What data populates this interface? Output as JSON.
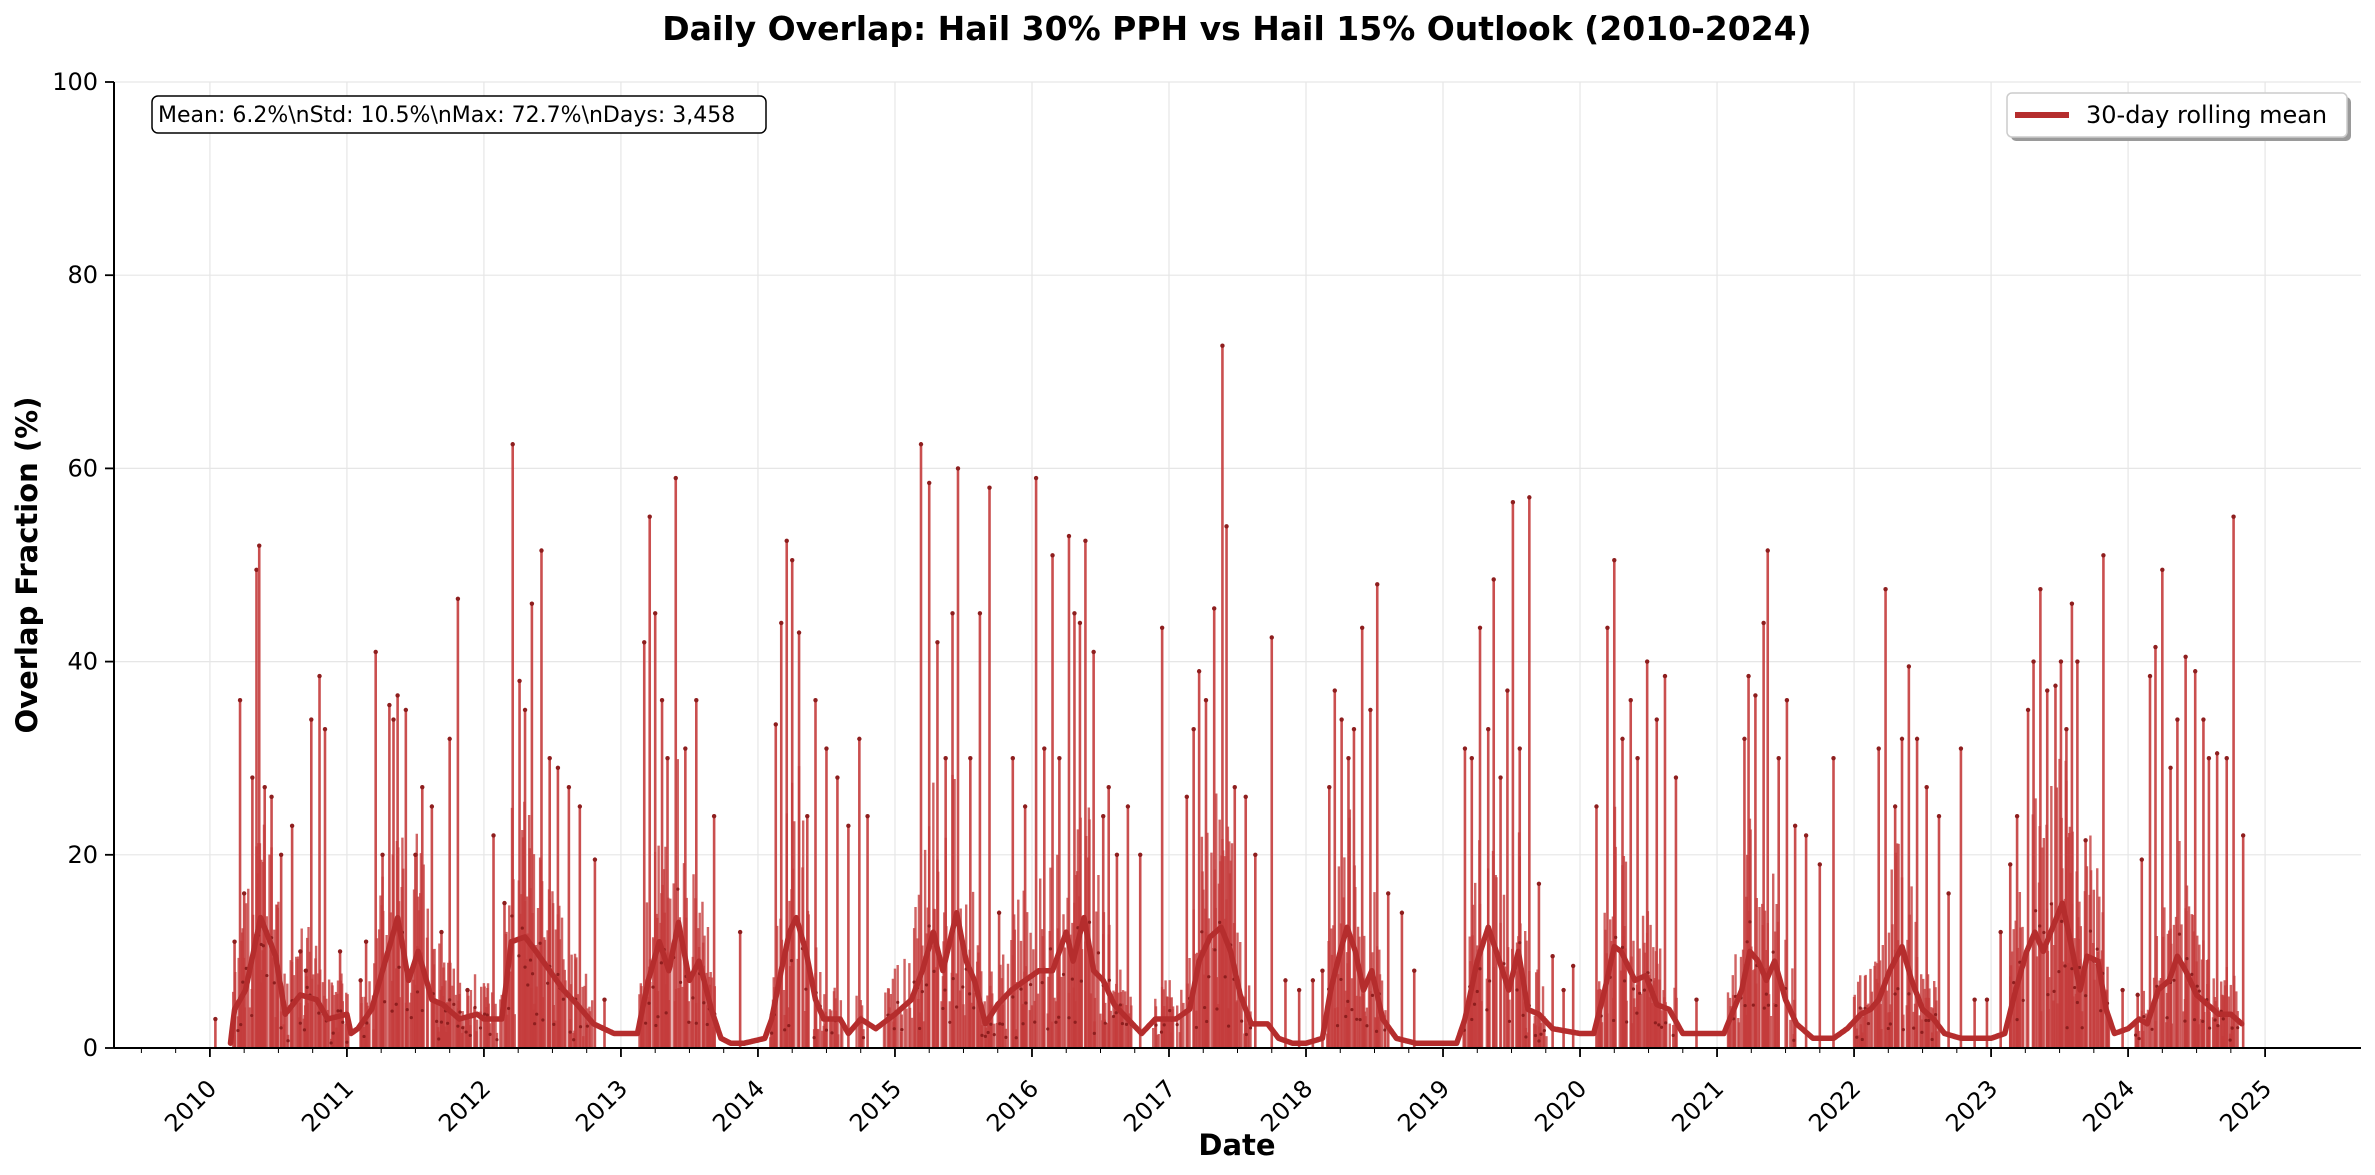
{
  "chart_data": {
    "type": "line",
    "title": "Daily Overlap: Hail 30% PPH vs Hail 15% Outlook (2010-2024)",
    "xlabel": "Date",
    "ylabel": "Overlap Fraction (%)",
    "xlim": [
      2009.3,
      2025.7
    ],
    "ylim": [
      0,
      100
    ],
    "x_ticks": [
      "2010",
      "2011",
      "2012",
      "2013",
      "2014",
      "2015",
      "2016",
      "2017",
      "2018",
      "2019",
      "2020",
      "2021",
      "2022",
      "2023",
      "2024",
      "2025"
    ],
    "y_ticks": [
      0,
      20,
      40,
      60,
      80,
      100
    ],
    "grid": true,
    "stats_box": "Mean: 6.2%\\nStd: 10.5%\\nMax: 72.7%\\nDays: 3,458",
    "legend": {
      "position": "top-right",
      "entries": [
        "30-day rolling mean"
      ]
    },
    "colors": {
      "daily": "#c43c3c",
      "rolling": "#b52d2d",
      "grid": "#e6e6e6"
    },
    "peaks": [
      [
        2010.04,
        3
      ],
      [
        2010.18,
        11
      ],
      [
        2010.22,
        36
      ],
      [
        2010.25,
        16
      ],
      [
        2010.31,
        28
      ],
      [
        2010.34,
        49.5
      ],
      [
        2010.36,
        52
      ],
      [
        2010.4,
        27
      ],
      [
        2010.45,
        26
      ],
      [
        2010.52,
        20
      ],
      [
        2010.6,
        23
      ],
      [
        2010.66,
        10
      ],
      [
        2010.7,
        8
      ],
      [
        2010.74,
        34
      ],
      [
        2010.8,
        38.5
      ],
      [
        2010.84,
        33
      ],
      [
        2010.95,
        10
      ],
      [
        2011.1,
        7
      ],
      [
        2011.14,
        11
      ],
      [
        2011.21,
        41
      ],
      [
        2011.26,
        20
      ],
      [
        2011.31,
        35.5
      ],
      [
        2011.34,
        34
      ],
      [
        2011.37,
        36.5
      ],
      [
        2011.43,
        35
      ],
      [
        2011.5,
        20
      ],
      [
        2011.55,
        27
      ],
      [
        2011.62,
        25
      ],
      [
        2011.69,
        12
      ],
      [
        2011.75,
        32
      ],
      [
        2011.81,
        46.5
      ],
      [
        2011.88,
        6
      ],
      [
        2012.07,
        22
      ],
      [
        2012.15,
        15
      ],
      [
        2012.21,
        62.5
      ],
      [
        2012.26,
        38
      ],
      [
        2012.3,
        35
      ],
      [
        2012.35,
        46
      ],
      [
        2012.42,
        51.5
      ],
      [
        2012.48,
        30
      ],
      [
        2012.54,
        29
      ],
      [
        2012.62,
        27
      ],
      [
        2012.7,
        25
      ],
      [
        2012.81,
        19.5
      ],
      [
        2012.88,
        5
      ],
      [
        2013.17,
        42
      ],
      [
        2013.21,
        55
      ],
      [
        2013.25,
        45
      ],
      [
        2013.3,
        36
      ],
      [
        2013.34,
        30
      ],
      [
        2013.4,
        59
      ],
      [
        2013.47,
        31
      ],
      [
        2013.55,
        36
      ],
      [
        2013.68,
        24
      ],
      [
        2013.87,
        12
      ],
      [
        2014.13,
        33.5
      ],
      [
        2014.17,
        44
      ],
      [
        2014.21,
        52.5
      ],
      [
        2014.25,
        50.5
      ],
      [
        2014.3,
        43
      ],
      [
        2014.36,
        24
      ],
      [
        2014.42,
        36
      ],
      [
        2014.5,
        31
      ],
      [
        2014.58,
        28
      ],
      [
        2014.66,
        23
      ],
      [
        2014.74,
        32
      ],
      [
        2014.8,
        24
      ],
      [
        2015.19,
        62.5
      ],
      [
        2015.25,
        58.5
      ],
      [
        2015.31,
        42
      ],
      [
        2015.37,
        30
      ],
      [
        2015.42,
        45
      ],
      [
        2015.46,
        60
      ],
      [
        2015.55,
        30
      ],
      [
        2015.62,
        45
      ],
      [
        2015.69,
        58
      ],
      [
        2015.76,
        14
      ],
      [
        2015.86,
        30
      ],
      [
        2015.95,
        25
      ],
      [
        2016.03,
        59
      ],
      [
        2016.09,
        31
      ],
      [
        2016.15,
        51
      ],
      [
        2016.2,
        30
      ],
      [
        2016.27,
        53
      ],
      [
        2016.31,
        45
      ],
      [
        2016.35,
        44
      ],
      [
        2016.39,
        52.5
      ],
      [
        2016.45,
        41
      ],
      [
        2016.52,
        24
      ],
      [
        2016.56,
        27
      ],
      [
        2016.62,
        20
      ],
      [
        2016.7,
        25
      ],
      [
        2016.79,
        20
      ],
      [
        2016.95,
        43.5
      ],
      [
        2017.13,
        26
      ],
      [
        2017.18,
        33
      ],
      [
        2017.22,
        39
      ],
      [
        2017.27,
        36
      ],
      [
        2017.33,
        45.5
      ],
      [
        2017.39,
        72.7
      ],
      [
        2017.42,
        54
      ],
      [
        2017.48,
        27
      ],
      [
        2017.56,
        26
      ],
      [
        2017.63,
        20
      ],
      [
        2017.75,
        42.5
      ],
      [
        2017.85,
        7
      ],
      [
        2017.95,
        6
      ],
      [
        2018.05,
        7
      ],
      [
        2018.12,
        8
      ],
      [
        2018.17,
        27
      ],
      [
        2018.21,
        37
      ],
      [
        2018.26,
        34
      ],
      [
        2018.31,
        30
      ],
      [
        2018.35,
        33
      ],
      [
        2018.41,
        43.5
      ],
      [
        2018.47,
        35
      ],
      [
        2018.52,
        48
      ],
      [
        2018.6,
        16
      ],
      [
        2018.7,
        14
      ],
      [
        2018.79,
        8
      ],
      [
        2019.16,
        31
      ],
      [
        2019.21,
        30
      ],
      [
        2019.27,
        43.5
      ],
      [
        2019.33,
        33
      ],
      [
        2019.37,
        48.5
      ],
      [
        2019.42,
        28
      ],
      [
        2019.47,
        37
      ],
      [
        2019.51,
        56.5
      ],
      [
        2019.56,
        31
      ],
      [
        2019.63,
        57
      ],
      [
        2019.7,
        17
      ],
      [
        2019.8,
        9.5
      ],
      [
        2019.88,
        6
      ],
      [
        2019.95,
        8.5
      ],
      [
        2020.12,
        25
      ],
      [
        2020.2,
        43.5
      ],
      [
        2020.25,
        50.5
      ],
      [
        2020.31,
        32
      ],
      [
        2020.37,
        36
      ],
      [
        2020.42,
        30
      ],
      [
        2020.49,
        40
      ],
      [
        2020.56,
        34
      ],
      [
        2020.62,
        38.5
      ],
      [
        2020.7,
        28
      ],
      [
        2020.85,
        5
      ],
      [
        2021.2,
        32
      ],
      [
        2021.23,
        38.5
      ],
      [
        2021.28,
        36.5
      ],
      [
        2021.34,
        44
      ],
      [
        2021.37,
        51.5
      ],
      [
        2021.45,
        30
      ],
      [
        2021.51,
        36
      ],
      [
        2021.57,
        23
      ],
      [
        2021.65,
        22
      ],
      [
        2021.75,
        19
      ],
      [
        2021.85,
        30
      ],
      [
        2022.18,
        31
      ],
      [
        2022.23,
        47.5
      ],
      [
        2022.3,
        25
      ],
      [
        2022.35,
        32
      ],
      [
        2022.4,
        39.5
      ],
      [
        2022.46,
        32
      ],
      [
        2022.53,
        27
      ],
      [
        2022.62,
        24
      ],
      [
        2022.69,
        16
      ],
      [
        2022.78,
        31
      ],
      [
        2022.88,
        5
      ],
      [
        2022.97,
        5
      ],
      [
        2023.07,
        12
      ],
      [
        2023.14,
        19
      ],
      [
        2023.19,
        24
      ],
      [
        2023.27,
        35
      ],
      [
        2023.31,
        40
      ],
      [
        2023.36,
        47.5
      ],
      [
        2023.41,
        37
      ],
      [
        2023.47,
        37.5
      ],
      [
        2023.51,
        40
      ],
      [
        2023.55,
        33
      ],
      [
        2023.59,
        46
      ],
      [
        2023.63,
        40
      ],
      [
        2023.69,
        21.5
      ],
      [
        2023.82,
        51
      ],
      [
        2023.96,
        6
      ],
      [
        2024.07,
        5.5
      ],
      [
        2024.1,
        19.5
      ],
      [
        2024.16,
        38.5
      ],
      [
        2024.2,
        41.5
      ],
      [
        2024.25,
        49.5
      ],
      [
        2024.31,
        29
      ],
      [
        2024.36,
        34
      ],
      [
        2024.42,
        40.5
      ],
      [
        2024.49,
        39
      ],
      [
        2024.55,
        34
      ],
      [
        2024.59,
        30
      ],
      [
        2024.65,
        30.5
      ],
      [
        2024.72,
        30
      ],
      [
        2024.77,
        55
      ],
      [
        2024.84,
        22
      ]
    ],
    "rolling_anchors": [
      [
        2010.15,
        0.5
      ],
      [
        2010.18,
        4
      ],
      [
        2010.26,
        6
      ],
      [
        2010.37,
        13.5
      ],
      [
        2010.48,
        9.5
      ],
      [
        2010.55,
        3.5
      ],
      [
        2010.66,
        5.5
      ],
      [
        2010.78,
        5
      ],
      [
        2010.86,
        3
      ],
      [
        2011.0,
        3.5
      ],
      [
        2011.03,
        1.5
      ],
      [
        2011.08,
        2
      ],
      [
        2011.18,
        4
      ],
      [
        2011.3,
        10
      ],
      [
        2011.37,
        13.5
      ],
      [
        2011.45,
        7
      ],
      [
        2011.52,
        10
      ],
      [
        2011.62,
        5
      ],
      [
        2011.7,
        4.5
      ],
      [
        2011.82,
        3
      ],
      [
        2011.95,
        3.5
      ],
      [
        2012.0,
        3
      ],
      [
        2012.13,
        3
      ],
      [
        2012.2,
        11
      ],
      [
        2012.3,
        11.5
      ],
      [
        2012.38,
        10
      ],
      [
        2012.48,
        8
      ],
      [
        2012.58,
        6
      ],
      [
        2012.68,
        4.5
      ],
      [
        2012.8,
        2.5
      ],
      [
        2012.95,
        1.5
      ],
      [
        2013.05,
        1.5
      ],
      [
        2013.12,
        1.5
      ],
      [
        2013.2,
        7
      ],
      [
        2013.28,
        11
      ],
      [
        2013.35,
        8
      ],
      [
        2013.42,
        13
      ],
      [
        2013.5,
        7
      ],
      [
        2013.57,
        9
      ],
      [
        2013.66,
        4
      ],
      [
        2013.73,
        1
      ],
      [
        2013.8,
        0.5
      ],
      [
        2013.9,
        0.5
      ],
      [
        2014.05,
        1
      ],
      [
        2014.1,
        3
      ],
      [
        2014.17,
        8
      ],
      [
        2014.23,
        12
      ],
      [
        2014.28,
        13.5
      ],
      [
        2014.35,
        10
      ],
      [
        2014.42,
        5
      ],
      [
        2014.48,
        3
      ],
      [
        2014.6,
        3
      ],
      [
        2014.66,
        1.5
      ],
      [
        2014.75,
        3
      ],
      [
        2014.86,
        2
      ],
      [
        2015.0,
        3.5
      ],
      [
        2015.12,
        5
      ],
      [
        2015.2,
        8
      ],
      [
        2015.28,
        12
      ],
      [
        2015.35,
        8
      ],
      [
        2015.45,
        14
      ],
      [
        2015.52,
        9
      ],
      [
        2015.58,
        7
      ],
      [
        2015.66,
        2.5
      ],
      [
        2015.75,
        4.5
      ],
      [
        2015.85,
        6
      ],
      [
        2015.95,
        7
      ],
      [
        2016.05,
        8
      ],
      [
        2016.15,
        8
      ],
      [
        2016.25,
        12
      ],
      [
        2016.3,
        9
      ],
      [
        2016.38,
        13.5
      ],
      [
        2016.45,
        8
      ],
      [
        2016.52,
        7
      ],
      [
        2016.6,
        4.5
      ],
      [
        2016.7,
        3
      ],
      [
        2016.8,
        1.5
      ],
      [
        2016.9,
        3
      ],
      [
        2017.05,
        3
      ],
      [
        2017.15,
        4
      ],
      [
        2017.22,
        9
      ],
      [
        2017.3,
        11.5
      ],
      [
        2017.38,
        12.5
      ],
      [
        2017.45,
        10
      ],
      [
        2017.52,
        5.5
      ],
      [
        2017.6,
        2.5
      ],
      [
        2017.72,
        2.5
      ],
      [
        2017.8,
        1
      ],
      [
        2017.9,
        0.5
      ],
      [
        2018.0,
        0.5
      ],
      [
        2018.12,
        1
      ],
      [
        2018.18,
        6
      ],
      [
        2018.25,
        10
      ],
      [
        2018.3,
        12.5
      ],
      [
        2018.36,
        10
      ],
      [
        2018.42,
        6
      ],
      [
        2018.48,
        8
      ],
      [
        2018.56,
        3
      ],
      [
        2018.66,
        1
      ],
      [
        2018.8,
        0.5
      ],
      [
        2019.0,
        0.5
      ],
      [
        2019.1,
        0.5
      ],
      [
        2019.16,
        3
      ],
      [
        2019.25,
        9
      ],
      [
        2019.33,
        12.5
      ],
      [
        2019.4,
        9.5
      ],
      [
        2019.48,
        6
      ],
      [
        2019.55,
        10
      ],
      [
        2019.62,
        4
      ],
      [
        2019.7,
        3.5
      ],
      [
        2019.8,
        2
      ],
      [
        2020.0,
        1.5
      ],
      [
        2020.1,
        1.5
      ],
      [
        2020.18,
        6
      ],
      [
        2020.25,
        10.5
      ],
      [
        2020.3,
        10
      ],
      [
        2020.4,
        7
      ],
      [
        2020.48,
        7.5
      ],
      [
        2020.56,
        4.5
      ],
      [
        2020.65,
        4
      ],
      [
        2020.75,
        1.5
      ],
      [
        2020.9,
        1.5
      ],
      [
        2021.05,
        1.5
      ],
      [
        2021.18,
        6
      ],
      [
        2021.24,
        10
      ],
      [
        2021.3,
        9
      ],
      [
        2021.36,
        7
      ],
      [
        2021.42,
        9
      ],
      [
        2021.5,
        5
      ],
      [
        2021.58,
        2.5
      ],
      [
        2021.7,
        1
      ],
      [
        2021.85,
        1
      ],
      [
        2021.95,
        2
      ],
      [
        2022.05,
        3.5
      ],
      [
        2022.12,
        4
      ],
      [
        2022.18,
        5
      ],
      [
        2022.26,
        8
      ],
      [
        2022.35,
        10.5
      ],
      [
        2022.42,
        7
      ],
      [
        2022.5,
        4
      ],
      [
        2022.58,
        3
      ],
      [
        2022.66,
        1.5
      ],
      [
        2022.78,
        1
      ],
      [
        2022.88,
        1
      ],
      [
        2023.0,
        1
      ],
      [
        2023.1,
        1.5
      ],
      [
        2023.18,
        6
      ],
      [
        2023.26,
        10
      ],
      [
        2023.32,
        12
      ],
      [
        2023.38,
        10
      ],
      [
        2023.45,
        12.5
      ],
      [
        2023.52,
        15
      ],
      [
        2023.58,
        11
      ],
      [
        2023.65,
        6
      ],
      [
        2023.7,
        9.5
      ],
      [
        2023.78,
        9
      ],
      [
        2023.84,
        4
      ],
      [
        2023.9,
        1.5
      ],
      [
        2024.0,
        2
      ],
      [
        2024.08,
        3
      ],
      [
        2024.14,
        2.5
      ],
      [
        2024.22,
        6
      ],
      [
        2024.3,
        7
      ],
      [
        2024.36,
        9.5
      ],
      [
        2024.42,
        8
      ],
      [
        2024.5,
        5.5
      ],
      [
        2024.58,
        4.5
      ],
      [
        2024.66,
        3.5
      ],
      [
        2024.75,
        3.5
      ],
      [
        2024.83,
        2.5
      ]
    ]
  }
}
